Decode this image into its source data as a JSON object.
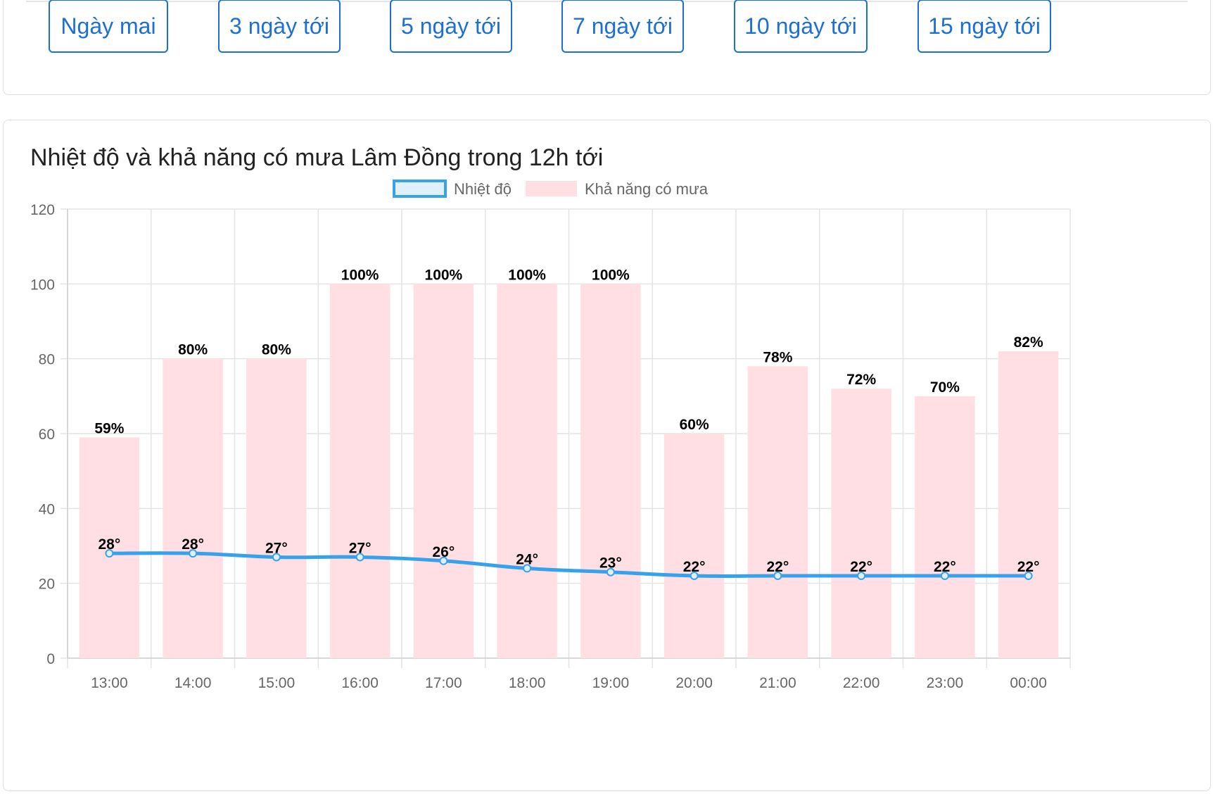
{
  "range_buttons": [
    "Ngày mai",
    "3 ngày tới",
    "5 ngày tới",
    "7 ngày tới",
    "10 ngày tới",
    "15 ngày tới"
  ],
  "chart": {
    "title": "Nhiệt độ và khả năng có mưa Lâm Đồng trong 12h tới"
  },
  "colors": {
    "accent": "#1b6fd6",
    "temperature_line": "#36a2eb",
    "rain_bar": "#ffdfe4",
    "grid": "#e4e4e4",
    "tick_text": "#666666"
  },
  "chart_data": {
    "type": "bar",
    "title": "Nhiệt độ và khả năng có mưa Lâm Đồng trong 12h tới",
    "categories": [
      "13:00",
      "14:00",
      "15:00",
      "16:00",
      "17:00",
      "18:00",
      "19:00",
      "20:00",
      "21:00",
      "22:00",
      "23:00",
      "00:00"
    ],
    "series": [
      {
        "name": "Nhiệt độ",
        "type": "line",
        "values": [
          28,
          28,
          27,
          27,
          26,
          24,
          23,
          22,
          22,
          22,
          22,
          22
        ],
        "data_labels": [
          "28°",
          "28°",
          "27°",
          "27°",
          "26°",
          "24°",
          "23°",
          "22°",
          "22°",
          "22°",
          "22°",
          "22°"
        ]
      },
      {
        "name": "Khả năng có mưa",
        "type": "bar",
        "values": [
          59,
          80,
          80,
          100,
          100,
          100,
          100,
          60,
          78,
          72,
          70,
          82
        ],
        "data_labels": [
          "59%",
          "80%",
          "80%",
          "100%",
          "100%",
          "100%",
          "100%",
          "60%",
          "78%",
          "72%",
          "70%",
          "82%"
        ]
      }
    ],
    "ylim": [
      0,
      120
    ],
    "yticks": [
      "0",
      "20",
      "40",
      "60",
      "80",
      "100",
      "120"
    ],
    "legend_position": "top-center",
    "grid": true
  }
}
